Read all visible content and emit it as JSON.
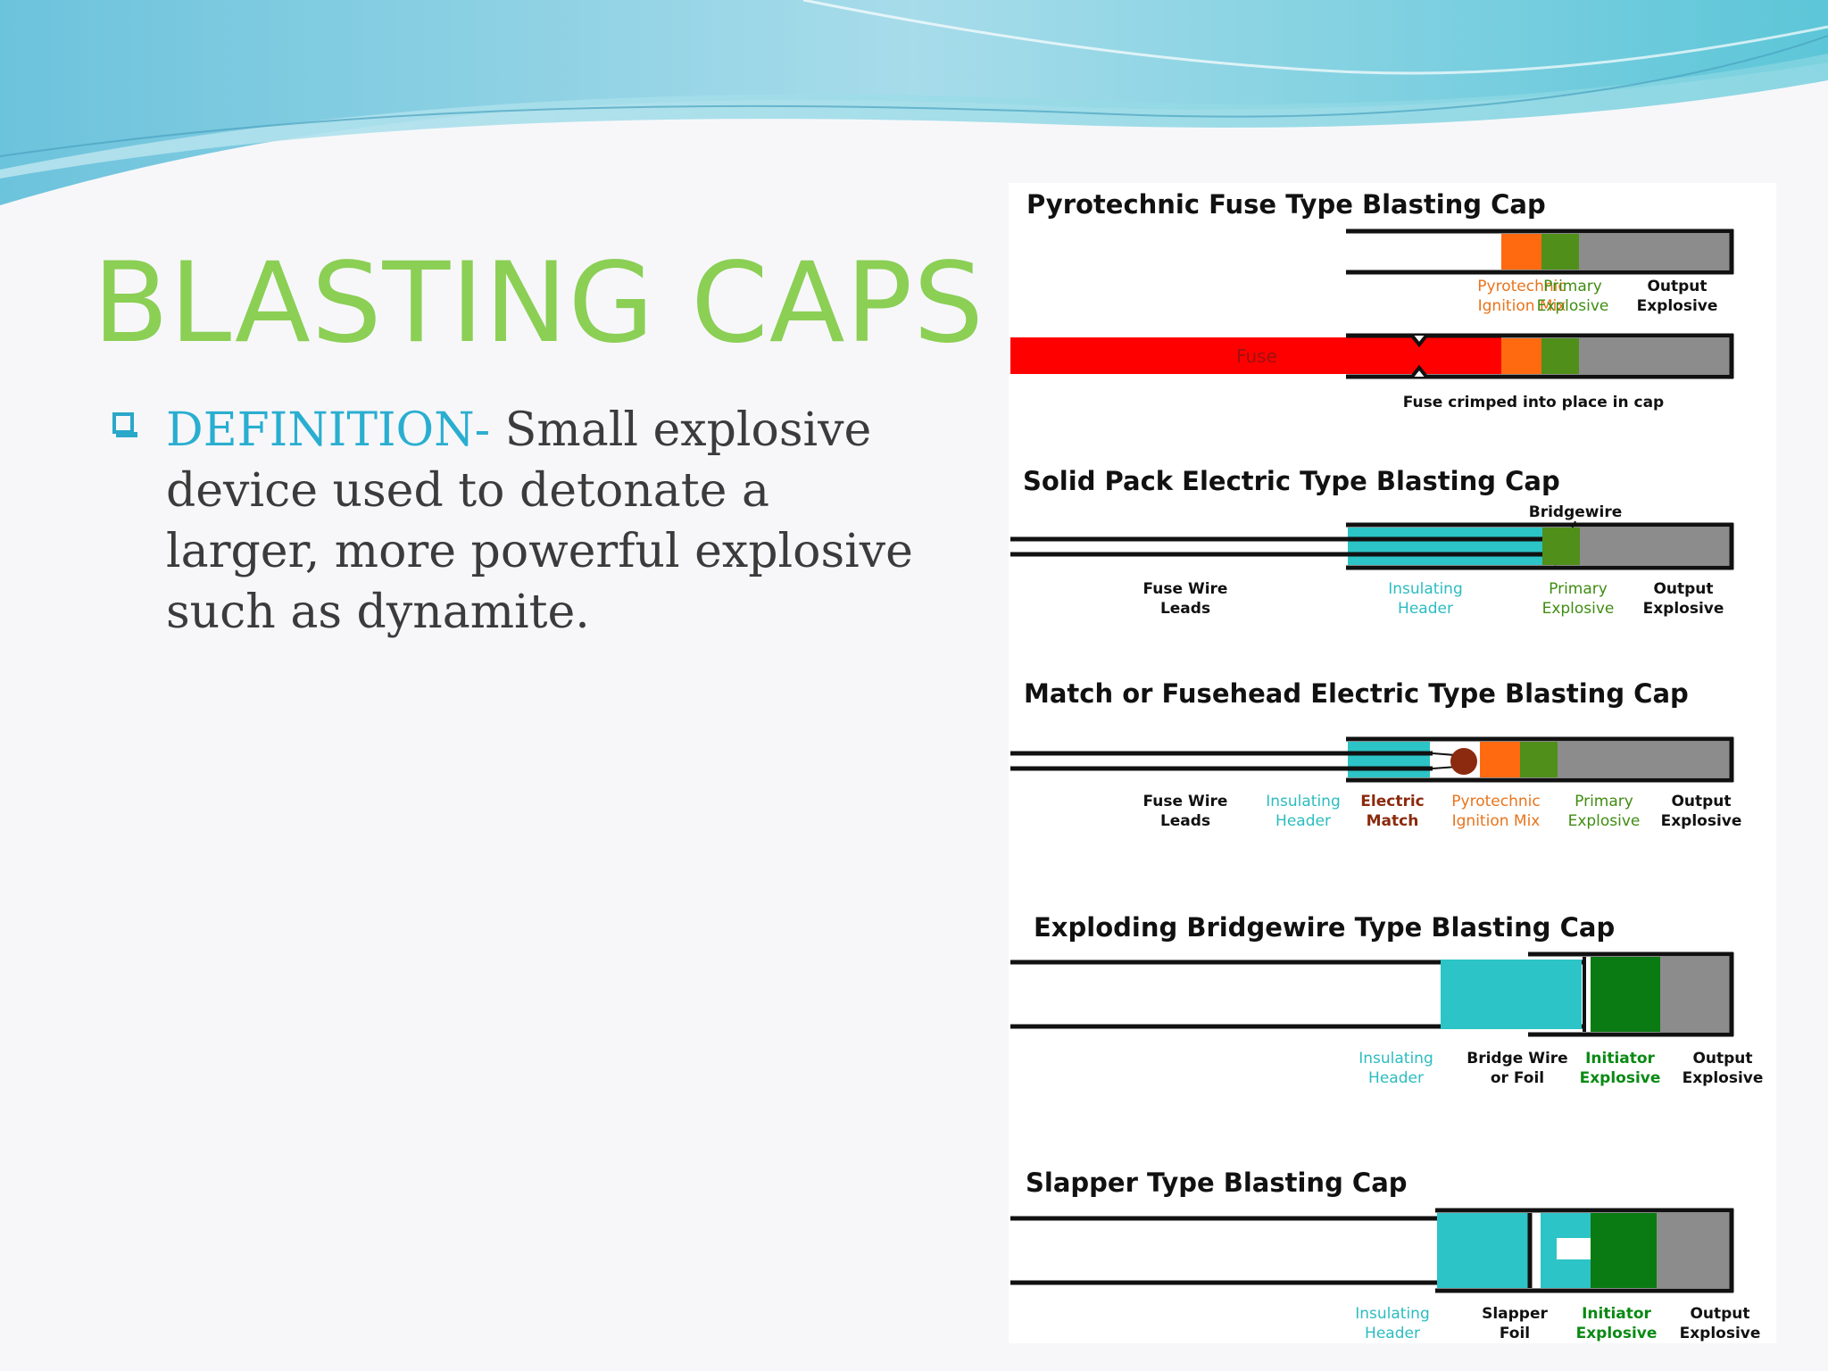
{
  "slide": {
    "title": "BLASTING CAPS",
    "definition_term": "DEFINITION-",
    "definition_text": " Small explosive device used to detonate a larger, more powerful explosive such as dynamite."
  },
  "colors": {
    "title": "#8bcf55",
    "term": "#2aaed0",
    "orange": "#ff6a10",
    "olive_green": "#4f8f1a",
    "dark_green": "#0a7a12",
    "gray": "#8c8c8c",
    "teal": "#2cc4c6",
    "red": "#ff0000",
    "brown": "#8b2a0e"
  },
  "diagram": {
    "pyrotechnic": {
      "title": "Pyrotechnic Fuse Type Blasting Cap",
      "label_pyro_1": "Pyrotechnic",
      "label_pyro_2": "Ignition Mix",
      "label_primary_1": "Primary",
      "label_primary_2": "Explosive",
      "label_output_1": "Output",
      "label_output_2": "Explosive",
      "fuse_label": "Fuse",
      "caption": "Fuse crimped into place in cap"
    },
    "solid_pack": {
      "title": "Solid Pack Electric Type Blasting Cap",
      "bridgewire": "Bridgewire",
      "label_leads_1": "Fuse Wire",
      "label_leads_2": "Leads",
      "label_header_1": "Insulating",
      "label_header_2": "Header",
      "label_primary_1": "Primary",
      "label_primary_2": "Explosive",
      "label_output_1": "Output",
      "label_output_2": "Explosive"
    },
    "match": {
      "title": "Match or Fusehead Electric Type Blasting Cap",
      "label_leads_1": "Fuse Wire",
      "label_leads_2": "Leads",
      "label_header_1": "Insulating",
      "label_header_2": "Header",
      "label_match_1": "Electric",
      "label_match_2": "Match",
      "label_pyro_1": "Pyrotechnic",
      "label_pyro_2": "Ignition Mix",
      "label_primary_1": "Primary",
      "label_primary_2": "Explosive",
      "label_output_1": "Output",
      "label_output_2": "Explosive"
    },
    "ebw": {
      "title": "Exploding Bridgewire Type Blasting Cap",
      "label_header_1": "Insulating",
      "label_header_2": "Header",
      "label_bridge_1": "Bridge Wire",
      "label_bridge_2": "or Foil",
      "label_initiator_1": "Initiator",
      "label_initiator_2": "Explosive",
      "label_output_1": "Output",
      "label_output_2": "Explosive"
    },
    "slapper": {
      "title": "Slapper Type Blasting Cap",
      "label_header_1": "Insulating",
      "label_header_2": "Header",
      "label_slapper_1": "Slapper",
      "label_slapper_2": "Foil",
      "label_initiator_1": "Initiator",
      "label_initiator_2": "Explosive",
      "label_output_1": "Output",
      "label_output_2": "Explosive"
    }
  }
}
